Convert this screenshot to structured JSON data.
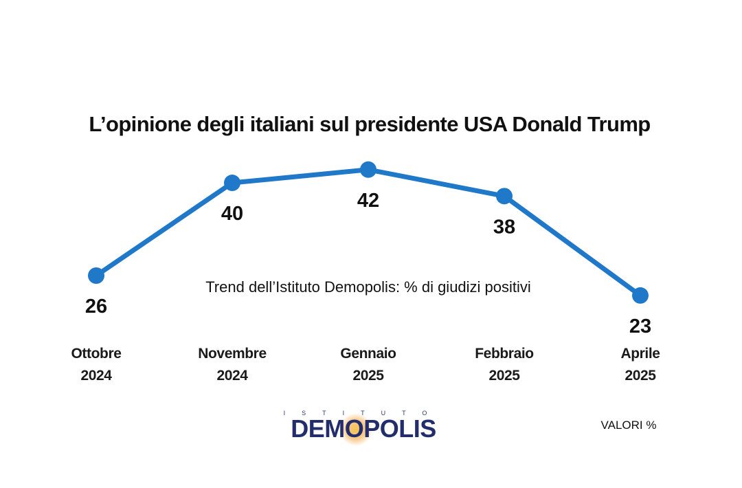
{
  "chart_data": {
    "type": "line",
    "title": "L’opinione degli italiani sul presidente USA Donald Trump",
    "subtitle": "Trend dell’Istituto Demopolis: % di giudizi positivi",
    "categories": [
      [
        "Ottobre",
        "2024"
      ],
      [
        "Novembre",
        "2024"
      ],
      [
        "Gennaio",
        "2025"
      ],
      [
        "Febbraio",
        "2025"
      ],
      [
        "Aprile",
        "2025"
      ]
    ],
    "series": [
      {
        "values": [
          26,
          40,
          42,
          38,
          23
        ]
      }
    ],
    "data_labels": [
      "26",
      "40",
      "42",
      "38",
      "23"
    ],
    "line_color": "#1f78c8",
    "grid": false,
    "legend": "none"
  },
  "footer": {
    "logo_top": "ISTITUTO",
    "logo_main": "DEMOPOLIS",
    "logo_color": "#232d6b",
    "logo_accent": "#f2a33a",
    "units_note": "VALORI %"
  }
}
